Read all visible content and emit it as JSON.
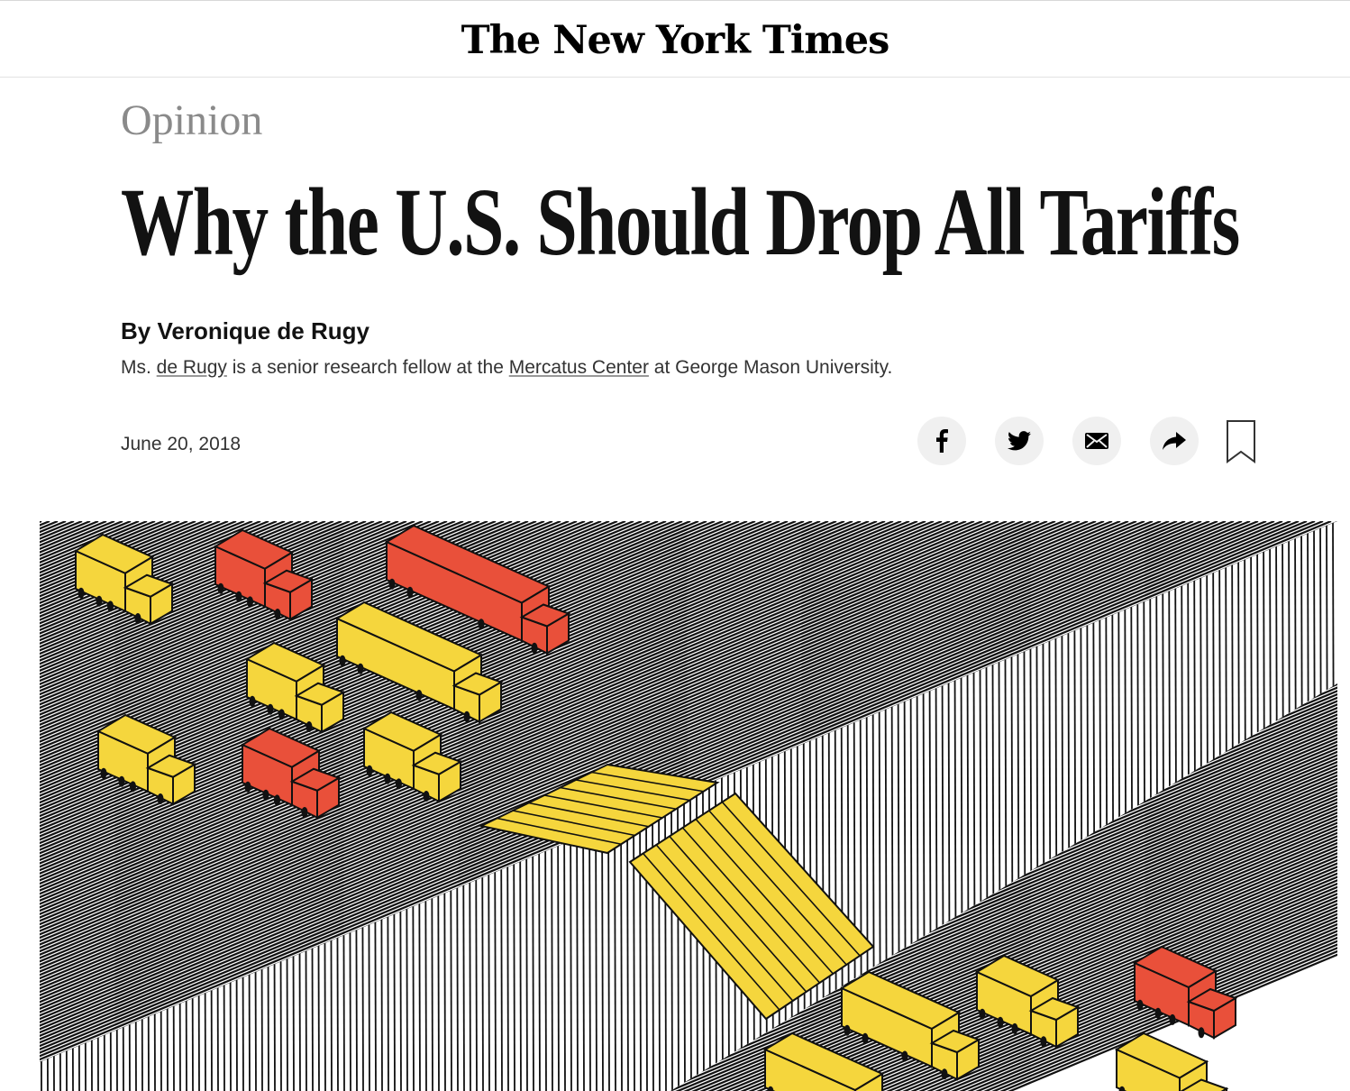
{
  "masthead": {
    "logo_text": "The New York Times"
  },
  "article": {
    "section": "Opinion",
    "headline": "Why the U.S. Should Drop All Tariffs",
    "byline": "By Veronique de Rugy",
    "bio": {
      "part1": "Ms. ",
      "link1": "de Rugy",
      "part2": " is a senior research fellow at the ",
      "link2": "Mercatus Center",
      "part3": " at George Mason University."
    },
    "date": "June 20, 2018"
  },
  "share": {
    "buttons": [
      {
        "icon": "facebook-icon"
      },
      {
        "icon": "twitter-icon"
      },
      {
        "icon": "email-icon"
      },
      {
        "icon": "share-arrow-icon"
      }
    ],
    "bookmark_icon": "bookmark-icon"
  },
  "illustration": {
    "colors": {
      "yellow": "#f5d63d",
      "red": "#e9503a",
      "line": "#111111",
      "background": "#ffffff"
    }
  }
}
